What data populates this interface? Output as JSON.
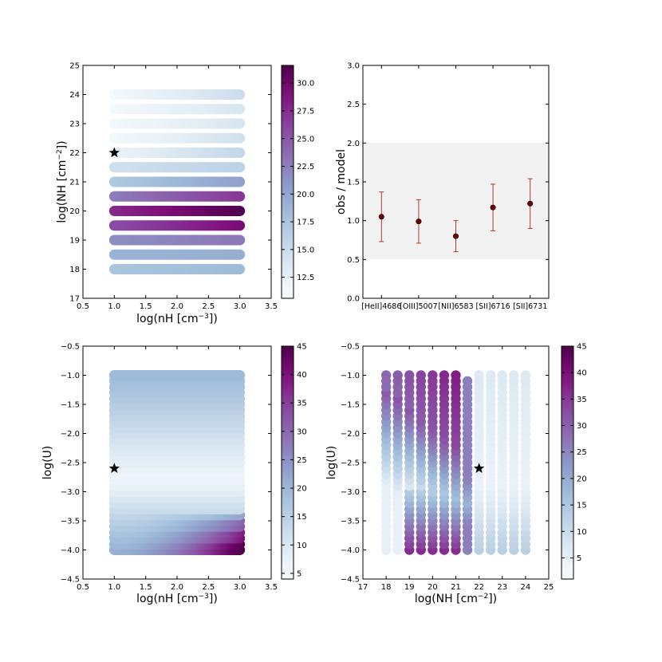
{
  "chart_data": [
    {
      "id": "panel-nh-vs-nH",
      "type": "scatter",
      "xlabel": "log(nH [cm$^{-3}$])",
      "ylabel": "log(NH [cm$^{-2}$])",
      "xlim": [
        0.5,
        3.5
      ],
      "ylim": [
        17,
        25
      ],
      "xticks": [
        "0.5",
        "1.0",
        "1.5",
        "2.0",
        "2.5",
        "3.0",
        "3.5"
      ],
      "yticks": [
        "17",
        "18",
        "19",
        "20",
        "21",
        "22",
        "23",
        "24",
        "25"
      ],
      "colorbar": {
        "range": [
          10.6,
          31.6
        ],
        "ticks": [
          "12.5",
          "15.0",
          "17.5",
          "20.0",
          "22.5",
          "25.0",
          "27.5",
          "30.0"
        ]
      },
      "x": [
        1.0,
        3.0
      ],
      "rows": [
        {
          "y": 18.0,
          "v0": 17.5,
          "v1": 18.5
        },
        {
          "y": 18.5,
          "v0": 19.0,
          "v1": 19.5
        },
        {
          "y": 19.0,
          "v0": 21.5,
          "v1": 23.0
        },
        {
          "y": 19.5,
          "v0": 25.5,
          "v1": 29.5
        },
        {
          "y": 20.0,
          "v0": 27.5,
          "v1": 31.5
        },
        {
          "y": 20.5,
          "v0": 22.5,
          "v1": 27.0
        },
        {
          "y": 21.0,
          "v0": 17.0,
          "v1": 20.5
        },
        {
          "y": 21.5,
          "v0": 14.5,
          "v1": 16.0
        },
        {
          "y": 22.0,
          "v0": 12.0,
          "v1": 15.5
        },
        {
          "y": 22.5,
          "v0": 11.0,
          "v1": 14.5
        },
        {
          "y": 23.0,
          "v0": 11.0,
          "v1": 14.0
        },
        {
          "y": 23.5,
          "v0": 11.0,
          "v1": 14.0
        },
        {
          "y": 24.0,
          "v0": 11.0,
          "v1": 15.0
        }
      ],
      "marker": {
        "x": 1.0,
        "y": 22.0,
        "symbol": "star"
      }
    },
    {
      "id": "panel-obs-model",
      "type": "errorbar",
      "ylabel": "obs / model",
      "ylim": [
        0.0,
        3.0
      ],
      "yticks": [
        "0.0",
        "0.5",
        "1.0",
        "1.5",
        "2.0",
        "2.5",
        "3.0"
      ],
      "band": [
        0.5,
        2.0
      ],
      "categories": [
        "[HeII]4686",
        "[OIII]5007",
        "[NII]6583",
        "[SII]6716",
        "[SII]6731"
      ],
      "values": [
        1.05,
        0.99,
        0.8,
        1.17,
        1.22
      ],
      "errors": [
        0.32,
        0.28,
        0.2,
        0.3,
        0.32
      ],
      "colors": {
        "point": "#7a0000",
        "errorbar": "#b03a2e",
        "band": "#f2f2f2"
      }
    },
    {
      "id": "panel-U-vs-nH",
      "type": "scatter",
      "xlabel": "log(nH [cm$^{-3}$])",
      "ylabel": "log(U)",
      "xlim": [
        0.5,
        3.5
      ],
      "ylim": [
        -4.5,
        -0.5
      ],
      "xticks": [
        "0.5",
        "1.0",
        "1.5",
        "2.0",
        "2.5",
        "3.0",
        "3.5"
      ],
      "yticks": [
        "−4.5",
        "−4.0",
        "−3.5",
        "−3.0",
        "−2.5",
        "−2.0",
        "−1.5",
        "−1.0",
        "−0.5"
      ],
      "colorbar": {
        "range": [
          4.0,
          45.0
        ],
        "ticks": [
          "5",
          "10",
          "15",
          "20",
          "25",
          "30",
          "35",
          "40",
          "45"
        ]
      },
      "x": [
        1.0,
        3.0
      ],
      "u_range": [
        -4.0,
        -1.0
      ],
      "u_step": 0.1,
      "marker": {
        "x": 1.0,
        "y": -2.6,
        "symbol": "star"
      }
    },
    {
      "id": "panel-U-vs-NH",
      "type": "scatter",
      "xlabel": "log(NH [cm$^{-2}$])",
      "ylabel": "log(U)",
      "xlim": [
        17,
        25
      ],
      "ylim": [
        -4.5,
        -0.5
      ],
      "xticks": [
        "17",
        "18",
        "19",
        "20",
        "21",
        "22",
        "23",
        "24",
        "25"
      ],
      "yticks": [
        "−4.5",
        "−4.0",
        "−3.5",
        "−3.0",
        "−2.5",
        "−2.0",
        "−1.5",
        "−1.0",
        "−0.5"
      ],
      "colorbar": {
        "range": [
          1.0,
          45.0
        ],
        "ticks": [
          "5",
          "10",
          "15",
          "20",
          "25",
          "30",
          "35",
          "40",
          "45"
        ]
      },
      "columns": [
        18.0,
        18.5,
        19.0,
        19.5,
        20.0,
        20.5,
        21.0,
        21.5,
        22.0,
        22.5,
        23.0,
        23.5,
        24.0
      ],
      "u_range": [
        -4.0,
        -1.0
      ],
      "u_step": 0.1,
      "marker": {
        "x": 22.0,
        "y": -2.6,
        "symbol": "star"
      }
    }
  ],
  "colormap": {
    "name": "BuPu",
    "stops": [
      "#f7fcfd",
      "#e0ecf4",
      "#bfd3e6",
      "#9ebcda",
      "#8c96c6",
      "#8c6bb1",
      "#88419d",
      "#810f7c",
      "#4d004b"
    ]
  }
}
